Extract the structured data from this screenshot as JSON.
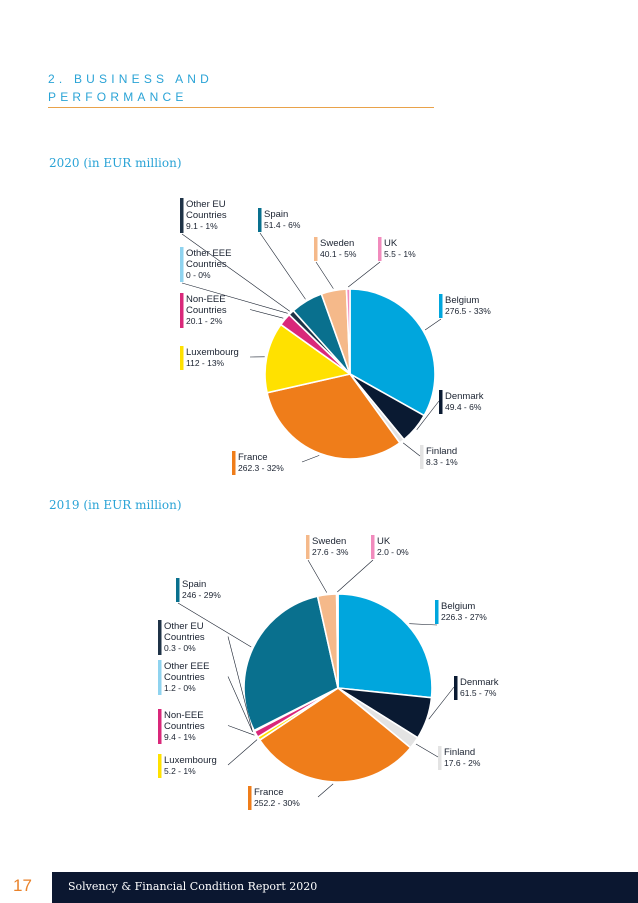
{
  "section": {
    "title_line1": "2. BUSINESS AND",
    "title_line2": "PERFORMANCE"
  },
  "footer": {
    "page_number": "17",
    "report_title": "Solvency & Financial Condition Report 2020"
  },
  "chart_data": [
    {
      "type": "pie",
      "title": "2020 (in EUR million)",
      "slices": [
        {
          "label": "Belgium",
          "value": 276.5,
          "value_text": "276.5 - 33%",
          "color": "#00a6dd"
        },
        {
          "label": "Denmark",
          "value": 49.4,
          "value_text": "49.4 - 6%",
          "color": "#0a1a32"
        },
        {
          "label": "Finland",
          "value": 8.3,
          "value_text": "8.3 - 1%",
          "color": "#e3e3e3"
        },
        {
          "label": "France",
          "value": 262.3,
          "value_text": "262.3 - 32%",
          "color": "#ef7d1a"
        },
        {
          "label": "Luxembourg",
          "value": 112,
          "value_text": "112 - 13%",
          "color": "#ffe100"
        },
        {
          "label": "Non-EEE Countries",
          "value": 20.1,
          "value_text": "20.1 - 2%",
          "color": "#d9287a"
        },
        {
          "label": "Other EEE Countries",
          "value": 0,
          "value_text": "0 - 0%",
          "color": "#8fd3ef"
        },
        {
          "label": "Other EU Countries",
          "value": 9.1,
          "value_text": "9.1 - 1%",
          "color": "#1f3347"
        },
        {
          "label": "Spain",
          "value": 51.4,
          "value_text": "51.4 - 6%",
          "color": "#09708e"
        },
        {
          "label": "Sweden",
          "value": 40.1,
          "value_text": "40.1 - 5%",
          "color": "#f5b98a"
        },
        {
          "label": "UK",
          "value": 5.5,
          "value_text": "5.5 - 1%",
          "color": "#f18bbd"
        }
      ]
    },
    {
      "type": "pie",
      "title": "2019 (in EUR million)",
      "slices": [
        {
          "label": "Belgium",
          "value": 226.3,
          "value_text": "226.3 - 27%",
          "color": "#00a6dd"
        },
        {
          "label": "Denmark",
          "value": 61.5,
          "value_text": "61.5 - 7%",
          "color": "#0a1a32"
        },
        {
          "label": "Finland",
          "value": 17.6,
          "value_text": "17.6 - 2%",
          "color": "#e3e3e3"
        },
        {
          "label": "France",
          "value": 252.2,
          "value_text": "252.2 - 30%",
          "color": "#ef7d1a"
        },
        {
          "label": "Luxembourg",
          "value": 5.2,
          "value_text": "5.2 - 1%",
          "color": "#ffe100"
        },
        {
          "label": "Non-EEE Countries",
          "value": 9.4,
          "value_text": "9.4 - 1%",
          "color": "#d9287a"
        },
        {
          "label": "Other EEE Countries",
          "value": 1.2,
          "value_text": "1.2 - 0%",
          "color": "#8fd3ef"
        },
        {
          "label": "Other EU Countries",
          "value": 0.3,
          "value_text": "0.3 - 0%",
          "color": "#1f3347"
        },
        {
          "label": "Spain",
          "value": 246,
          "value_text": "246 - 29%",
          "color": "#09708e"
        },
        {
          "label": "Sweden",
          "value": 27.6,
          "value_text": "27.6 - 3%",
          "color": "#f5b98a"
        },
        {
          "label": "UK",
          "value": 2.0,
          "value_text": "2.0 - 0%",
          "color": "#f18bbd"
        }
      ]
    }
  ]
}
